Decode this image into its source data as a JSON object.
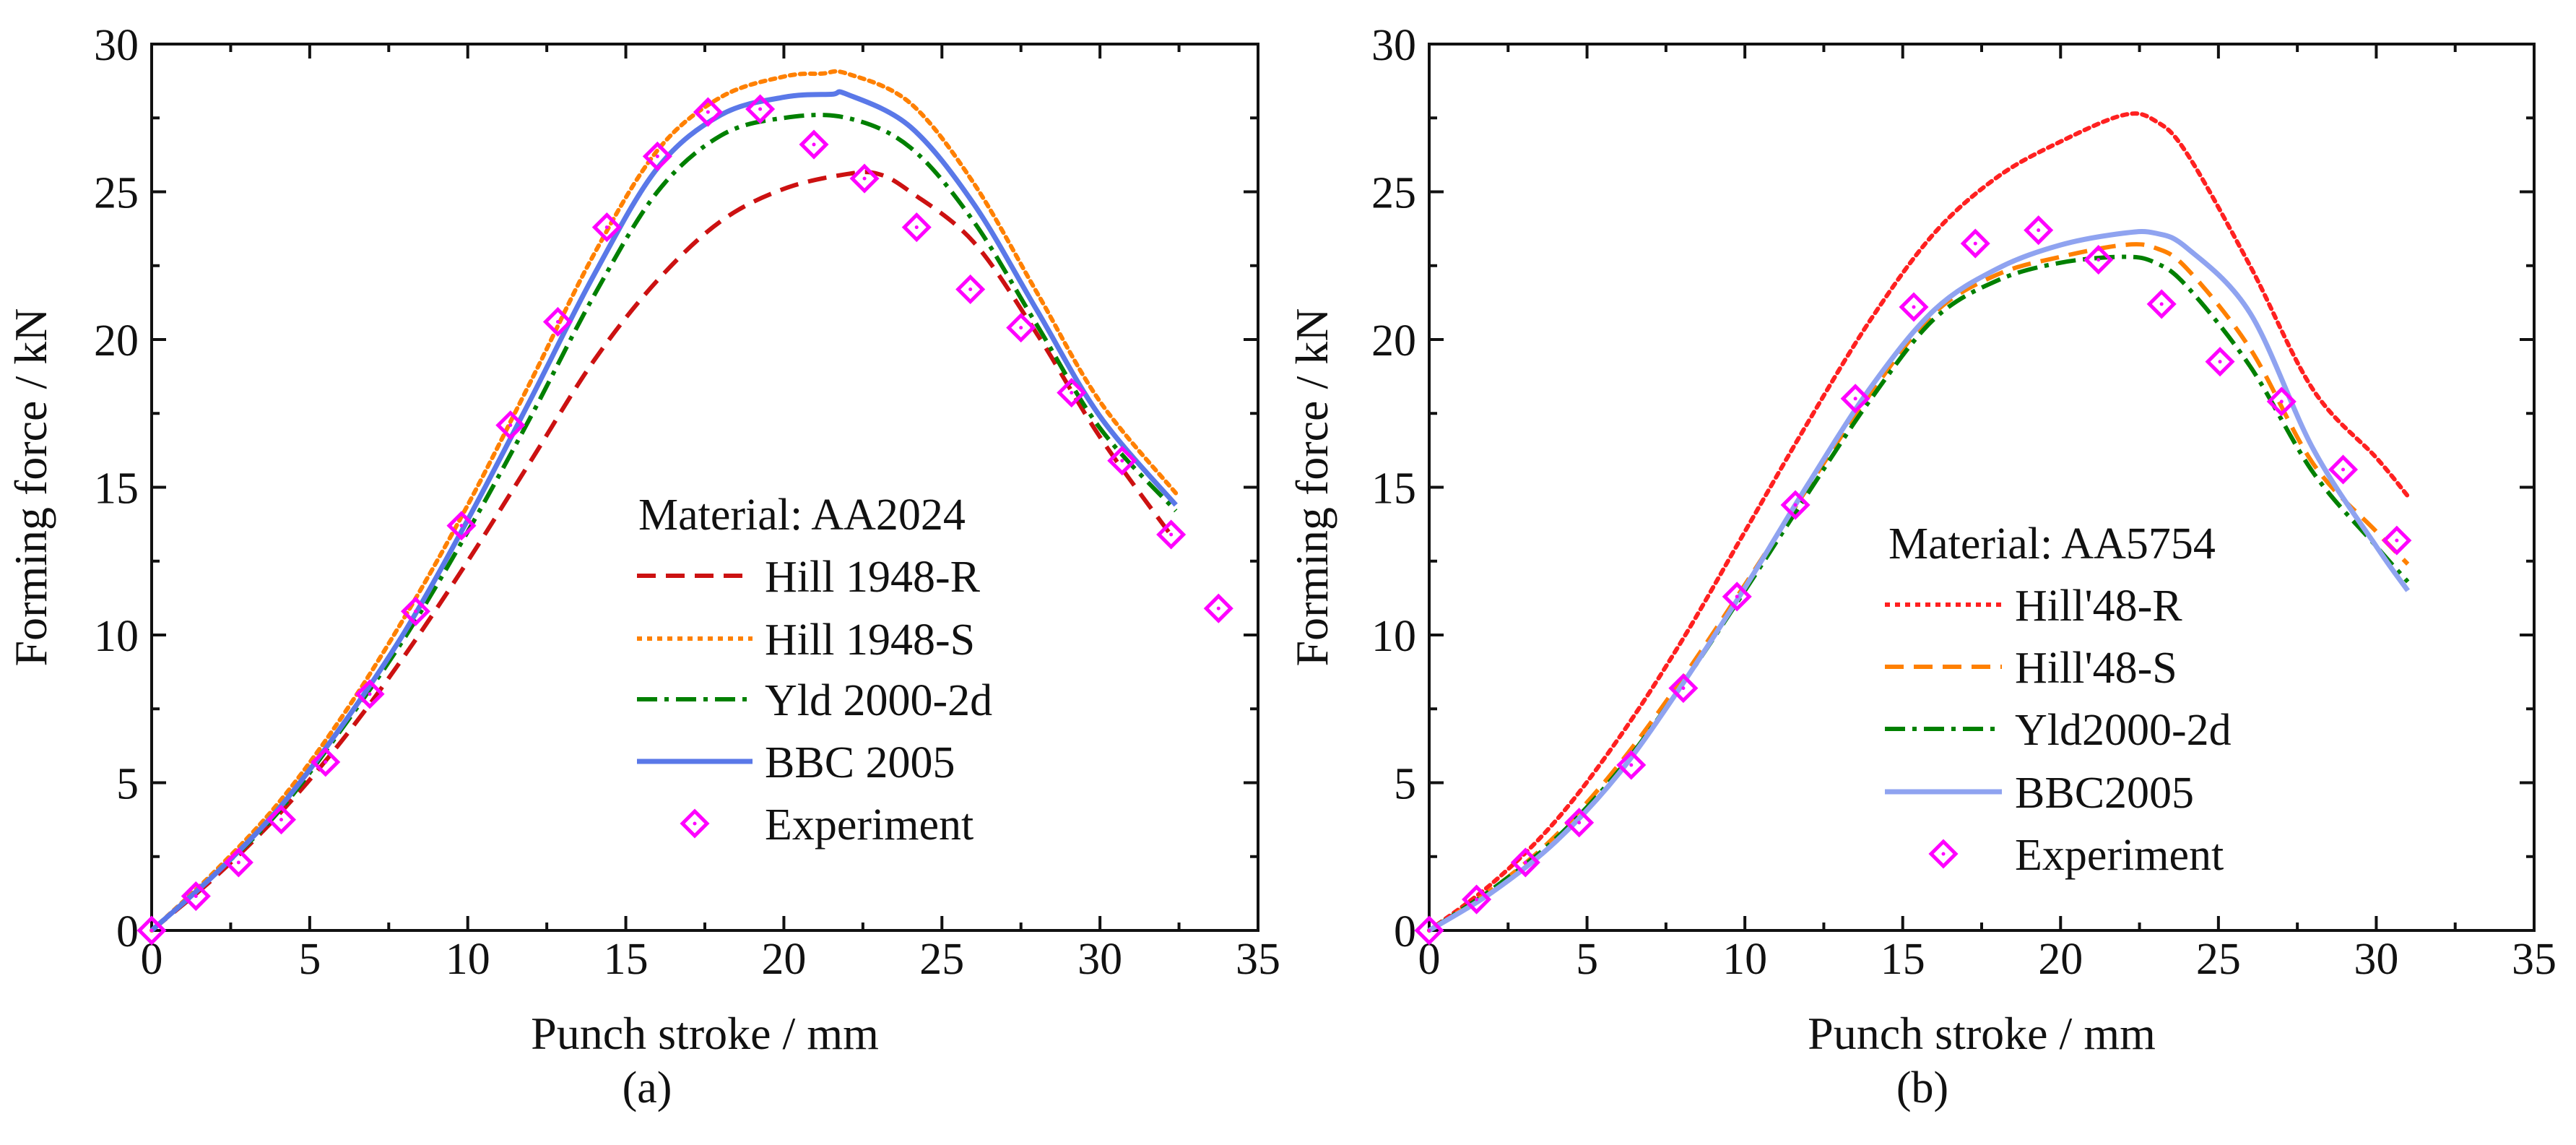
{
  "chart_data": [
    {
      "type": "line",
      "panel_label": "(a)",
      "xlabel": "Punch stroke / mm",
      "ylabel": "Forming force / kN",
      "xlim": [
        0,
        35
      ],
      "ylim": [
        0,
        30
      ],
      "xticks": [
        0,
        5,
        10,
        15,
        20,
        25,
        30,
        35
      ],
      "yticks": [
        0,
        5,
        10,
        15,
        20,
        25,
        30
      ],
      "legend_title": "Material: AA2024",
      "legend_placement": "center-right",
      "series": [
        {
          "name": "Hill 1948-R",
          "style": "dashed",
          "color": "#cc1111",
          "x": [
            0,
            2,
            4,
            6,
            8,
            10,
            12,
            14,
            16,
            18,
            20,
            22,
            23,
            24,
            26,
            28,
            30,
            32.3
          ],
          "y": [
            0,
            1.8,
            3.9,
            6.4,
            9.3,
            12.5,
            15.9,
            19.3,
            22.0,
            24.0,
            25.1,
            25.6,
            25.6,
            25.0,
            23.3,
            20.2,
            16.7,
            13.3
          ]
        },
        {
          "name": "Hill 1948-S",
          "style": "dotted",
          "color": "#ff8000",
          "x": [
            0,
            2,
            4,
            6,
            8,
            10,
            12,
            14,
            16,
            18,
            20,
            21.2,
            22,
            24,
            26,
            28,
            30,
            32.4
          ],
          "y": [
            0,
            2.0,
            4.3,
            7.2,
            10.6,
            14.4,
            18.6,
            22.9,
            26.4,
            28.2,
            28.9,
            29.0,
            29.0,
            28.0,
            25.3,
            21.6,
            17.9,
            14.8
          ]
        },
        {
          "name": "Yld 2000-2d",
          "style": "dashdot",
          "color": "#008000",
          "x": [
            0,
            2,
            4,
            6,
            8,
            10,
            12,
            14,
            16,
            18,
            20,
            22,
            24,
            26,
            28,
            30,
            32.4
          ],
          "y": [
            0,
            1.9,
            4.0,
            6.8,
            9.9,
            13.5,
            17.4,
            21.5,
            25.0,
            26.9,
            27.5,
            27.5,
            26.5,
            24.0,
            20.5,
            17.0,
            14.2
          ]
        },
        {
          "name": "BBC 2005",
          "style": "solid",
          "color": "#5a78e8",
          "x": [
            0,
            2,
            4,
            6,
            8,
            10,
            12,
            14,
            16,
            18,
            20,
            21.5,
            22,
            24,
            26,
            28,
            30,
            32.4
          ],
          "y": [
            0,
            1.9,
            4.1,
            6.9,
            10.1,
            13.9,
            18.0,
            22.2,
            25.8,
            27.6,
            28.2,
            28.3,
            28.3,
            27.2,
            24.6,
            21.0,
            17.4,
            14.4
          ]
        }
      ],
      "experiment": {
        "name": "Experiment",
        "color": "#ff00ff",
        "x": [
          0,
          1.4,
          2.75,
          4.1,
          5.5,
          6.9,
          8.35,
          9.8,
          11.35,
          12.85,
          14.4,
          16.0,
          17.6,
          19.25,
          20.95,
          22.55,
          24.2,
          25.9,
          27.5,
          29.1,
          30.7,
          32.25,
          33.75
        ],
        "y": [
          0,
          1.16,
          2.3,
          3.75,
          5.7,
          8.0,
          10.8,
          13.7,
          17.1,
          20.6,
          23.8,
          26.2,
          27.7,
          27.8,
          26.6,
          25.45,
          23.8,
          21.7,
          20.4,
          18.2,
          15.9,
          13.4,
          10.9
        ]
      }
    },
    {
      "type": "line",
      "panel_label": "(b)",
      "xlabel": "Punch stroke / mm",
      "ylabel": "Forming force / kN",
      "xlim": [
        0,
        35
      ],
      "ylim": [
        0,
        30
      ],
      "xticks": [
        0,
        5,
        10,
        15,
        20,
        25,
        30,
        35
      ],
      "yticks": [
        0,
        5,
        10,
        15,
        20,
        25,
        30
      ],
      "legend_title": "Material: AA5754",
      "legend_placement": "center-right",
      "series": [
        {
          "name": "Hill'48-R",
          "style": "dotted",
          "color": "#ff2020",
          "x": [
            0,
            2,
            4,
            6,
            8,
            10,
            12,
            14,
            16,
            18,
            20,
            22,
            23,
            24,
            26,
            28,
            30,
            31
          ],
          "y": [
            0,
            1.6,
            3.7,
            6.5,
            9.8,
            13.5,
            17.2,
            20.7,
            23.6,
            25.5,
            26.7,
            27.6,
            27.4,
            26.3,
            22.5,
            18.3,
            16.0,
            14.7
          ]
        },
        {
          "name": "Hill'48-S",
          "style": "dashed",
          "color": "#ff8000",
          "x": [
            0,
            2,
            4,
            6,
            8,
            10,
            12,
            14,
            16,
            18,
            20,
            22,
            23,
            24,
            26,
            28,
            30,
            31
          ],
          "y": [
            0,
            1.4,
            3.2,
            5.6,
            8.5,
            11.7,
            15.0,
            18.2,
            20.9,
            22.2,
            22.8,
            23.2,
            23.1,
            22.4,
            19.7,
            15.8,
            13.5,
            12.4
          ]
        },
        {
          "name": "Yld2000-2d",
          "style": "dashdot",
          "color": "#008000",
          "x": [
            0,
            2,
            4,
            6,
            8,
            10,
            12,
            14,
            16,
            18,
            20,
            22,
            23,
            24,
            26,
            28,
            30,
            31
          ],
          "y": [
            0,
            1.4,
            3.1,
            5.4,
            8.3,
            11.5,
            14.8,
            18.0,
            20.7,
            22.0,
            22.6,
            22.8,
            22.6,
            21.8,
            19.1,
            15.5,
            13.0,
            11.8
          ]
        },
        {
          "name": "BBC2005",
          "style": "solid",
          "color": "#8fa3f0",
          "x": [
            0,
            2,
            4,
            6,
            8,
            10,
            12,
            14,
            16,
            18,
            20,
            22,
            23,
            24,
            26,
            28,
            30,
            31
          ],
          "y": [
            0,
            1.3,
            3.0,
            5.3,
            8.3,
            11.6,
            15.1,
            18.4,
            21.0,
            22.4,
            23.2,
            23.6,
            23.6,
            23.1,
            20.9,
            16.3,
            13.0,
            11.5
          ]
        }
      ],
      "experiment": {
        "name": "Experiment",
        "color": "#ff00ff",
        "x": [
          0,
          1.5,
          3.05,
          4.75,
          6.4,
          8.05,
          9.75,
          11.6,
          13.5,
          15.35,
          17.3,
          19.3,
          21.2,
          23.2,
          25.05,
          27.0,
          28.95,
          30.65
        ],
        "y": [
          0,
          1.05,
          2.3,
          3.65,
          5.6,
          8.2,
          11.3,
          14.4,
          18.0,
          21.1,
          23.25,
          23.7,
          22.7,
          21.2,
          19.25,
          17.9,
          15.6,
          13.2
        ]
      }
    }
  ]
}
